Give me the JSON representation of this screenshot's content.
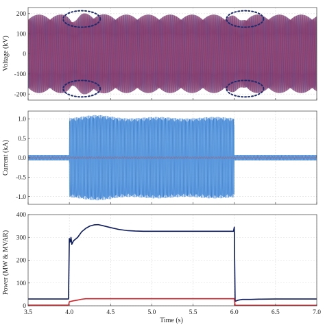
{
  "chart_data": [
    {
      "type": "line",
      "ylabel": "Voltage (kV)",
      "xlim": [
        3.5,
        7.0
      ],
      "ylim": [
        -230,
        230
      ],
      "yticks": [
        -200,
        -100,
        0,
        100,
        200
      ],
      "grid": true,
      "description_values": {
        "three_phase_peak": 200,
        "steady_envelope": [
          -195,
          195
        ],
        "dip_events_time": [
          4.0,
          6.0
        ]
      },
      "series": [
        {
          "color": "#8a2350",
          "values": "three-phase 50Hz sinusoid, peak ~195 kV"
        },
        {
          "color": "#3a4f9a",
          "values": "overlapping phase"
        }
      ],
      "annotations": [
        {
          "shape": "dashed-ellipse",
          "at": [
            4.1,
            180
          ],
          "color": "#1b2a6b"
        },
        {
          "shape": "dashed-ellipse",
          "at": [
            6.1,
            180
          ],
          "color": "#1b2a6b"
        },
        {
          "shape": "dashed-ellipse",
          "at": [
            4.1,
            -180
          ],
          "color": "#1b2a6b"
        },
        {
          "shape": "dashed-ellipse",
          "at": [
            6.1,
            -180
          ],
          "color": "#1b2a6b"
        }
      ]
    },
    {
      "type": "line",
      "ylabel": "Current (kA)",
      "xlim": [
        3.5,
        7.0
      ],
      "ylim": [
        -1.2,
        1.2
      ],
      "yticks": [
        -1.0,
        -0.5,
        0.0,
        0.5,
        1.0
      ],
      "grid": true,
      "description_values": {
        "pre_envelope": 0.07,
        "during_envelope": 1.07,
        "event_window": [
          4.0,
          6.0
        ]
      },
      "series": [
        {
          "color": "#3f86d6",
          "values": "oscillating current envelope"
        },
        {
          "color": "#c0392b",
          "values": "low amplitude phase"
        }
      ]
    },
    {
      "type": "line",
      "xlabel": "Time (s)",
      "ylabel": "Power (MW & MVAR)",
      "xlim": [
        3.5,
        7.0
      ],
      "ylim": [
        0,
        400
      ],
      "xticks": [
        3.5,
        4.0,
        4.5,
        5.0,
        5.5,
        6.0,
        6.5,
        7.0
      ],
      "yticks": [
        0,
        100,
        200,
        300,
        400
      ],
      "grid": true,
      "series": [
        {
          "color": "#0b1a5c",
          "x": [
            3.5,
            3.99,
            4.0,
            4.01,
            4.02,
            4.03,
            4.05,
            4.1,
            4.15,
            4.2,
            4.25,
            4.3,
            4.35,
            4.4,
            4.5,
            4.6,
            4.7,
            4.8,
            4.9,
            5.0,
            5.5,
            5.99,
            6.0,
            6.01,
            6.05,
            6.1,
            6.2,
            6.3,
            6.5,
            7.0
          ],
          "y": [
            30,
            30,
            295,
            280,
            300,
            270,
            285,
            300,
            325,
            340,
            350,
            355,
            356,
            352,
            343,
            335,
            330,
            328,
            327,
            327,
            327,
            327,
            345,
            20,
            25,
            28,
            28,
            29,
            30,
            30
          ]
        },
        {
          "color": "#d2232a",
          "x": [
            3.5,
            3.99,
            4.0,
            4.05,
            4.1,
            4.15,
            4.2,
            4.3,
            4.5,
            5.0,
            5.5,
            5.99,
            6.0,
            6.01,
            6.5,
            7.0
          ],
          "y": [
            3,
            3,
            18,
            22,
            25,
            29,
            31,
            31,
            31,
            31,
            31,
            31,
            31,
            2,
            2,
            2
          ]
        }
      ]
    }
  ]
}
